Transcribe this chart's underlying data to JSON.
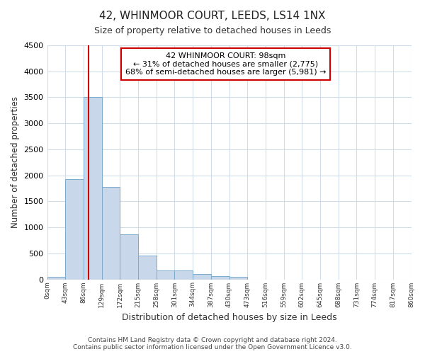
{
  "title": "42, WHINMOOR COURT, LEEDS, LS14 1NX",
  "subtitle": "Size of property relative to detached houses in Leeds",
  "xlabel": "Distribution of detached houses by size in Leeds",
  "ylabel": "Number of detached properties",
  "bin_edges": [
    0,
    43,
    86,
    129,
    172,
    215,
    258,
    301,
    344,
    387,
    430,
    473,
    516,
    559,
    602,
    645,
    688,
    731,
    774,
    817,
    860
  ],
  "bin_counts": [
    50,
    1920,
    3500,
    1780,
    860,
    450,
    175,
    175,
    100,
    60,
    50,
    0,
    0,
    0,
    0,
    0,
    0,
    0,
    0,
    0
  ],
  "bar_color": "#c8d8ea",
  "bar_edge_color": "#7aaacb",
  "background_color": "#ffffff",
  "grid_color": "#d0dce8",
  "property_size": 98,
  "annotation_line1": "42 WHINMOOR COURT: 98sqm",
  "annotation_line2": "← 31% of detached houses are smaller (2,775)",
  "annotation_line3": "68% of semi-detached houses are larger (5,981) →",
  "annotation_box_color": "#ffffff",
  "annotation_box_edge_color": "#cc0000",
  "vline_color": "#cc0000",
  "ylim": [
    0,
    4500
  ],
  "tick_labels": [
    "0sqm",
    "43sqm",
    "86sqm",
    "129sqm",
    "172sqm",
    "215sqm",
    "258sqm",
    "301sqm",
    "344sqm",
    "387sqm",
    "430sqm",
    "473sqm",
    "516sqm",
    "559sqm",
    "602sqm",
    "645sqm",
    "688sqm",
    "731sqm",
    "774sqm",
    "817sqm",
    "860sqm"
  ],
  "footer": "Contains HM Land Registry data © Crown copyright and database right 2024.\nContains public sector information licensed under the Open Government Licence v3.0."
}
